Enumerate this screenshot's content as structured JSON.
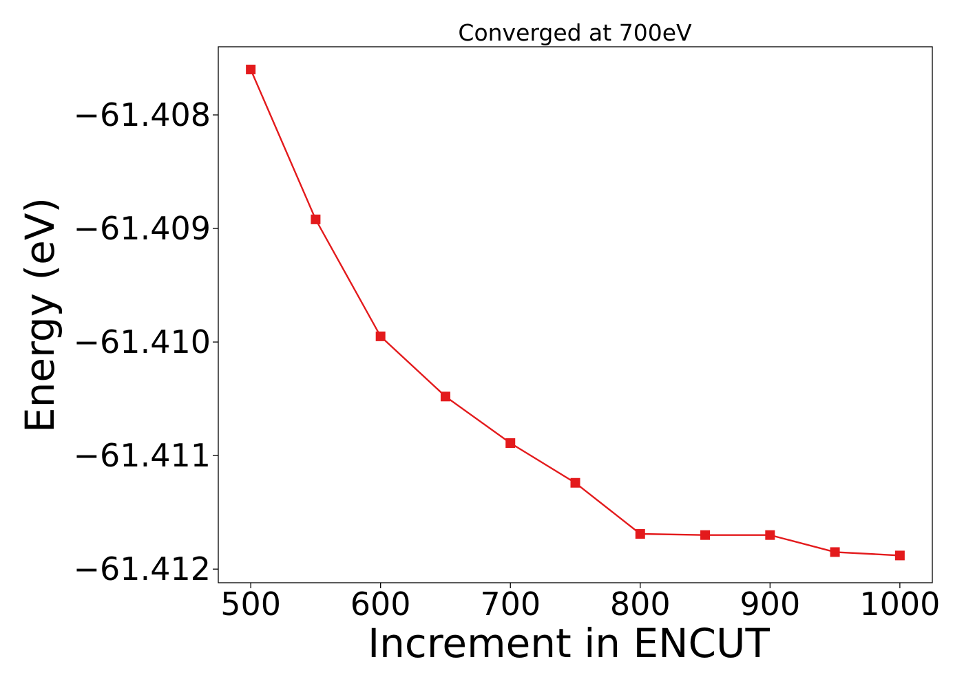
{
  "chart_data": {
    "type": "line",
    "title": "Converged at 700eV",
    "xlabel": "Increment in ENCUT",
    "ylabel": "Energy (eV)",
    "xlim": [
      475,
      1025
    ],
    "ylim": [
      -61.41212,
      -61.4074
    ],
    "x_ticks": [
      500,
      600,
      700,
      800,
      900,
      1000
    ],
    "x_tick_labels": [
      "500",
      "600",
      "700",
      "800",
      "900",
      "1000"
    ],
    "y_ticks": [
      -61.408,
      -61.409,
      -61.41,
      -61.411,
      -61.412
    ],
    "y_tick_labels": [
      "−61.408",
      "−61.409",
      "−61.410",
      "−61.411",
      "−61.412"
    ],
    "grid": false,
    "series": [
      {
        "color": "#e31a1c",
        "marker": "square",
        "x": [
          500,
          550,
          600,
          650,
          700,
          750,
          800,
          850,
          900,
          950,
          1000
        ],
        "y": [
          -61.4076,
          -61.40892,
          -61.40995,
          -61.41048,
          -61.41089,
          -61.41124,
          -61.41169,
          -61.4117,
          -61.4117,
          -61.41185,
          -61.41188
        ]
      }
    ]
  }
}
